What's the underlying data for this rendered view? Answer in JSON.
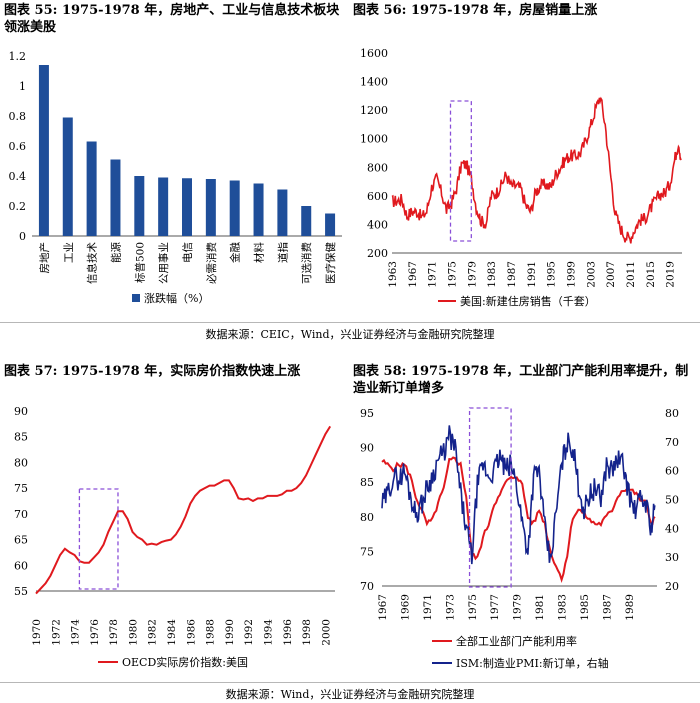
{
  "charts_meta": {
    "c55": {
      "num": "图表 55:",
      "text": "1975-1978 年，房地产、工业与信息技术板块领涨美股"
    },
    "c56": {
      "num": "图表 56:",
      "text": "1975-1978 年，房屋销量上涨"
    },
    "c57": {
      "num": "图表 57:",
      "text": "1975-1978 年，实际房价指数快速上涨"
    },
    "c58": {
      "num": "图表 58:",
      "text": "1975-1978 年，工业部门产能利用率提升，制造业新订单增多"
    }
  },
  "sources": {
    "top": "数据来源：CEIC，Wind，兴业证券经济与金融研究院整理",
    "bottom": "数据来源：Wind，兴业证券经济与金融研究院整理"
  },
  "colors": {
    "bar": "#1f4e99",
    "red": "#e0191e",
    "navy": "#14238c",
    "box": "#8a4fd8",
    "axis": "#555555"
  },
  "chart_data": [
    {
      "id": "c55",
      "type": "bar",
      "title": "1975-1978 年，房地产、工业与信息技术板块领涨美股",
      "categories": [
        "房地产",
        "工业",
        "信息技术",
        "能源",
        "标普500",
        "公用事业",
        "电信",
        "必需消费",
        "金融",
        "材料",
        "道指",
        "可选消费",
        "医疗保健"
      ],
      "values": [
        1.14,
        0.79,
        0.63,
        0.51,
        0.4,
        0.39,
        0.385,
        0.38,
        0.37,
        0.35,
        0.31,
        0.2,
        0.15
      ],
      "ylim": [
        0,
        1.2
      ],
      "yticks": [
        "0",
        "0.2",
        "0.4",
        "0.6",
        "0.8",
        "1",
        "1.2"
      ],
      "legend": "涨跌幅（%）"
    },
    {
      "id": "c56",
      "type": "line",
      "title": "1975-1978 年，房屋销量上涨",
      "ylim": [
        200,
        1600
      ],
      "yticks": [
        "200",
        "400",
        "600",
        "800",
        "1000",
        "1200",
        "1400",
        "1600"
      ],
      "xticks": [
        "1963",
        "1967",
        "1971",
        "1975",
        "1979",
        "1983",
        "1987",
        "1991",
        "1995",
        "1999",
        "2003",
        "2007",
        "2011",
        "2015",
        "2019"
      ],
      "xlim": [
        1963,
        2021.5
      ],
      "highlight": [
        1974.8,
        1979.0
      ],
      "series": [
        {
          "name": "美国:新建住房销售（千套）",
          "x": [
            1963,
            1964,
            1965,
            1966,
            1967,
            1968,
            1969,
            1970,
            1971,
            1972,
            1973,
            1974,
            1975,
            1976,
            1977,
            1978,
            1979,
            1980,
            1981,
            1982,
            1983,
            1984,
            1985,
            1986,
            1987,
            1988,
            1989,
            1990,
            1991,
            1992,
            1993,
            1994,
            1995,
            1996,
            1997,
            1998,
            1999,
            2000,
            2001,
            2002,
            2003,
            2004,
            2005,
            2006,
            2007,
            2008,
            2009,
            2010,
            2011,
            2012,
            2013,
            2014,
            2015,
            2016,
            2017,
            2018,
            2019,
            2020,
            2020.8,
            2021.3
          ],
          "y": [
            560,
            565,
            575,
            460,
            490,
            490,
            450,
            490,
            660,
            720,
            620,
            500,
            550,
            650,
            820,
            820,
            720,
            520,
            420,
            410,
            600,
            620,
            670,
            750,
            670,
            670,
            650,
            530,
            490,
            630,
            670,
            680,
            660,
            750,
            800,
            860,
            880,
            880,
            900,
            980,
            1080,
            1200,
            1300,
            1100,
            780,
            480,
            380,
            320,
            300,
            370,
            430,
            440,
            500,
            560,
            610,
            620,
            680,
            850,
            980,
            850
          ]
        }
      ]
    },
    {
      "id": "c57",
      "type": "line",
      "title": "1975-1978 年，实际房价指数快速上涨",
      "ylim": [
        55,
        90
      ],
      "yticks": [
        "55",
        "60",
        "65",
        "70",
        "75",
        "80",
        "85",
        "90"
      ],
      "xticks": [
        "1970",
        "1972",
        "1974",
        "1976",
        "1978",
        "1980",
        "1982",
        "1984",
        "1986",
        "1988",
        "1990",
        "1992",
        "1994",
        "1996",
        "1998",
        "2000"
      ],
      "xlim": [
        1970,
        2001
      ],
      "highlight": [
        1974.5,
        1978.5
      ],
      "series": [
        {
          "name": "OECD实际房价指数:美国",
          "x": [
            1970,
            1970.5,
            1971,
            1971.5,
            1972,
            1972.5,
            1973,
            1973.5,
            1974,
            1974.5,
            1975,
            1975.5,
            1976,
            1976.5,
            1977,
            1977.5,
            1978,
            1978.5,
            1979,
            1979.5,
            1980,
            1980.5,
            1981,
            1981.5,
            1982,
            1982.5,
            1983,
            1983.5,
            1984,
            1984.5,
            1985,
            1985.5,
            1986,
            1986.5,
            1987,
            1987.5,
            1988,
            1988.5,
            1989,
            1989.5,
            1990,
            1990.5,
            1991,
            1991.5,
            1992,
            1992.5,
            1993,
            1993.5,
            1994,
            1994.5,
            1995,
            1995.5,
            1996,
            1996.5,
            1997,
            1997.5,
            1998,
            1998.5,
            1999,
            1999.5,
            2000,
            2000.5
          ],
          "y": [
            54.5,
            55.5,
            56.5,
            58,
            60,
            62,
            63.2,
            62.5,
            62,
            60.8,
            60.5,
            60.5,
            61.5,
            62.5,
            64,
            66.5,
            68.5,
            70.5,
            70.5,
            69,
            66.5,
            65.5,
            65,
            64,
            64.2,
            64,
            64.5,
            64.8,
            65,
            66,
            67.5,
            69.5,
            72,
            73.5,
            74.5,
            75,
            75.5,
            75.5,
            76,
            76.5,
            76.5,
            75,
            73,
            72.8,
            73,
            72.5,
            73,
            73,
            73.5,
            73.5,
            73.5,
            73.8,
            74.5,
            74.5,
            75,
            76,
            77.5,
            79.5,
            81.5,
            83.5,
            85.5,
            87
          ]
        }
      ]
    },
    {
      "id": "c58",
      "type": "line",
      "title": "1975-1978 年，工业部门产能利用率提升，制造业新订单增多",
      "ylim_left": [
        70,
        95
      ],
      "ylim_right": [
        20,
        80
      ],
      "yticks_left": [
        "70",
        "75",
        "80",
        "85",
        "90",
        "95"
      ],
      "yticks_right": [
        "20",
        "30",
        "40",
        "50",
        "60",
        "70",
        "80"
      ],
      "xticks": [
        "1967",
        "1969",
        "1971",
        "1973",
        "1975",
        "1977",
        "1979",
        "1981",
        "1983",
        "1985",
        "1987",
        "1989"
      ],
      "xlim": [
        1967,
        1991.5
      ],
      "highlight": [
        1974.8,
        1978.5
      ],
      "series": [
        {
          "name": "全部工业部门产能利用率",
          "axis": "left",
          "x": [
            1967,
            1967.5,
            1968,
            1968.5,
            1969,
            1969.5,
            1970,
            1970.5,
            1971,
            1971.5,
            1972,
            1972.5,
            1973,
            1973.5,
            1974,
            1974.5,
            1975,
            1975.5,
            1976,
            1976.5,
            1977,
            1977.5,
            1978,
            1978.5,
            1979,
            1979.5,
            1980,
            1980.5,
            1981,
            1981.5,
            1982,
            1982.5,
            1983,
            1983.5,
            1984,
            1984.5,
            1985,
            1985.5,
            1986,
            1986.5,
            1987,
            1987.5,
            1988,
            1988.5,
            1989,
            1989.5,
            1990,
            1990.5,
            1991,
            1991.3
          ],
          "y": [
            88,
            87.5,
            87,
            87.5,
            87.5,
            86,
            83,
            81,
            79,
            79.5,
            82,
            84,
            88,
            88.5,
            87.5,
            83,
            74.5,
            74,
            77,
            79,
            82,
            83,
            85,
            85.5,
            86,
            84.5,
            80,
            79,
            81,
            79,
            75,
            73,
            71,
            74.5,
            80,
            81,
            80.5,
            79.5,
            79,
            79,
            80,
            81,
            83,
            84,
            84,
            83.5,
            82.5,
            82,
            79,
            80
          ]
        },
        {
          "name": "ISM:制造业PMI:新订单，右轴",
          "axis": "right",
          "x": [
            1967,
            1967.5,
            1968,
            1968.5,
            1969,
            1969.5,
            1970,
            1970.5,
            1971,
            1971.5,
            1972,
            1972.5,
            1973,
            1973.5,
            1974,
            1974.5,
            1975,
            1975.5,
            1976,
            1976.5,
            1977,
            1977.5,
            1978,
            1978.5,
            1979,
            1979.5,
            1980,
            1980.5,
            1981,
            1981.5,
            1982,
            1982.5,
            1983,
            1983.5,
            1984,
            1984.5,
            1985,
            1985.5,
            1986,
            1986.5,
            1987,
            1987.5,
            1988,
            1988.5,
            1989,
            1989.5,
            1990,
            1990.5,
            1991,
            1991.3
          ],
          "y": [
            48,
            52,
            58,
            57,
            60,
            52,
            45,
            48,
            54,
            58,
            64,
            66,
            72,
            68,
            52,
            40,
            30,
            55,
            62,
            58,
            60,
            65,
            60,
            62,
            55,
            42,
            32,
            58,
            60,
            40,
            28,
            45,
            62,
            70,
            68,
            55,
            46,
            52,
            54,
            50,
            62,
            60,
            64,
            62,
            52,
            46,
            50,
            49,
            40,
            48
          ]
        }
      ]
    }
  ]
}
